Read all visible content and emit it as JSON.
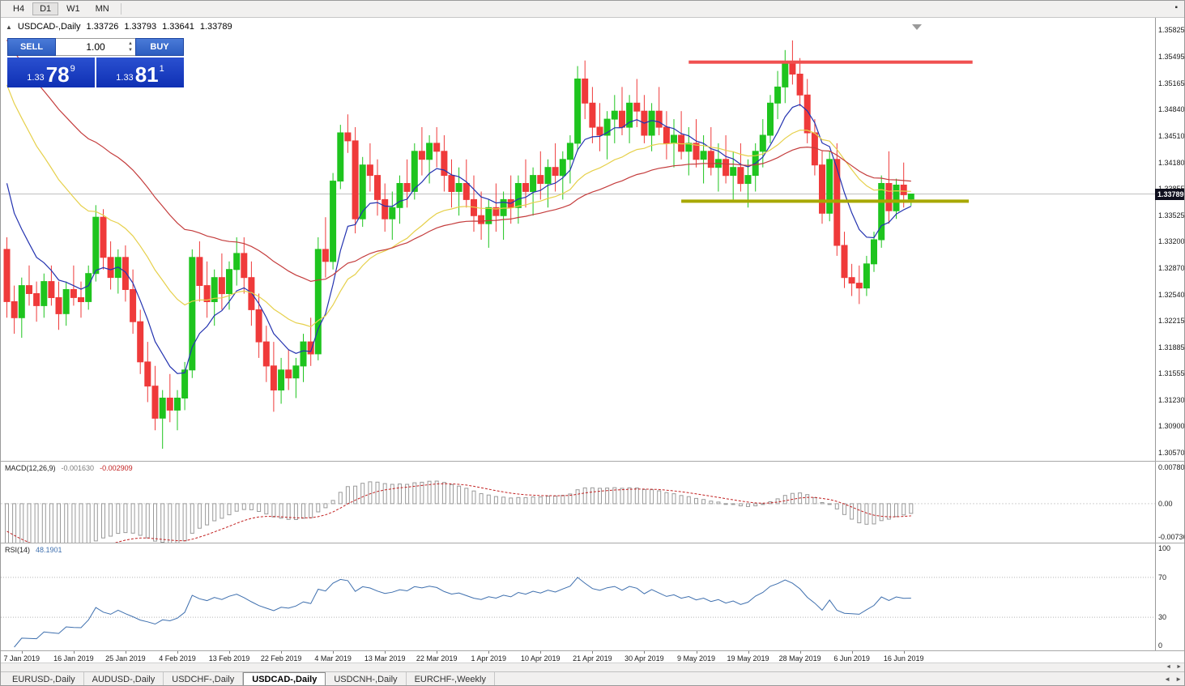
{
  "toolbar": {
    "timeframes": [
      "H4",
      "D1",
      "W1",
      "MN"
    ],
    "active": "D1",
    "corner_icon": "▪"
  },
  "chart": {
    "title_symbol": "USDCAD-,Daily",
    "ohlc": {
      "open": "1.33726",
      "high": "1.33793",
      "low": "1.33641",
      "close": "1.33789"
    },
    "current_price": "1.33789",
    "price_axis": [
      "1.35825",
      "1.35495",
      "1.35165",
      "1.34840",
      "1.34510",
      "1.34180",
      "1.33855",
      "1.33525",
      "1.33200",
      "1.32870",
      "1.32540",
      "1.32215",
      "1.31885",
      "1.31555",
      "1.31230",
      "1.30900",
      "1.30570"
    ]
  },
  "trade_panel": {
    "sell_label": "SELL",
    "buy_label": "BUY",
    "volume": "1.00",
    "bid_small": "1.33",
    "bid_big": "78",
    "bid_sup": "9",
    "ask_small": "1.33",
    "ask_big": "81",
    "ask_sup": "1"
  },
  "chart_data": {
    "type": "candlestick",
    "symbol": "USDCAD",
    "timeframe": "Daily",
    "x_axis_dates": {
      "labels": [
        "7 Jan 2019",
        "16 Jan 2019",
        "25 Jan 2019",
        "4 Feb 2019",
        "13 Feb 2019",
        "22 Feb 2019",
        "4 Mar 2019",
        "13 Mar 2019",
        "22 Mar 2019",
        "1 Apr 2019",
        "10 Apr 2019",
        "21 Apr 2019",
        "30 Apr 2019",
        "9 May 2019",
        "19 May 2019",
        "28 May 2019",
        "6 Jun 2019",
        "16 Jun 2019"
      ],
      "candle_indices": [
        2,
        9,
        16,
        23,
        30,
        37,
        44,
        51,
        58,
        65,
        72,
        79,
        86,
        93,
        100,
        107,
        114,
        121
      ]
    },
    "candles": [
      [
        1.331,
        1.3325,
        1.3225,
        1.3245
      ],
      [
        1.3245,
        1.3265,
        1.3205,
        1.3225
      ],
      [
        1.3225,
        1.3275,
        1.32,
        1.3265
      ],
      [
        1.3265,
        1.329,
        1.324,
        1.3255
      ],
      [
        1.3255,
        1.327,
        1.322,
        1.324
      ],
      [
        1.324,
        1.328,
        1.3225,
        1.327
      ],
      [
        1.327,
        1.329,
        1.324,
        1.325
      ],
      [
        1.325,
        1.327,
        1.321,
        1.323
      ],
      [
        1.323,
        1.327,
        1.3215,
        1.326
      ],
      [
        1.326,
        1.329,
        1.324,
        1.325
      ],
      [
        1.325,
        1.327,
        1.3225,
        1.3245
      ],
      [
        1.3245,
        1.329,
        1.3235,
        1.328
      ],
      [
        1.328,
        1.3365,
        1.327,
        1.335
      ],
      [
        1.335,
        1.336,
        1.3285,
        1.33
      ],
      [
        1.33,
        1.332,
        1.326,
        1.3275
      ],
      [
        1.3275,
        1.331,
        1.3255,
        1.33
      ],
      [
        1.33,
        1.3315,
        1.3245,
        1.326
      ],
      [
        1.326,
        1.3285,
        1.3205,
        1.322
      ],
      [
        1.322,
        1.3235,
        1.3155,
        1.317
      ],
      [
        1.317,
        1.3195,
        1.312,
        1.314
      ],
      [
        1.314,
        1.3165,
        1.3085,
        1.31
      ],
      [
        1.31,
        1.3135,
        1.3062,
        1.3125
      ],
      [
        1.3125,
        1.3155,
        1.3095,
        1.311
      ],
      [
        1.311,
        1.3135,
        1.3085,
        1.3125
      ],
      [
        1.3125,
        1.317,
        1.311,
        1.316
      ],
      [
        1.316,
        1.331,
        1.315,
        1.33
      ],
      [
        1.33,
        1.332,
        1.3245,
        1.3265
      ],
      [
        1.3265,
        1.3295,
        1.3225,
        1.3245
      ],
      [
        1.3245,
        1.3285,
        1.3215,
        1.3275
      ],
      [
        1.3275,
        1.3305,
        1.3235,
        1.3255
      ],
      [
        1.3255,
        1.3295,
        1.3235,
        1.3285
      ],
      [
        1.3285,
        1.3325,
        1.3265,
        1.3305
      ],
      [
        1.3305,
        1.3325,
        1.3255,
        1.3275
      ],
      [
        1.3275,
        1.3295,
        1.3215,
        1.3235
      ],
      [
        1.3235,
        1.3255,
        1.3175,
        1.3195
      ],
      [
        1.3195,
        1.3215,
        1.3145,
        1.3165
      ],
      [
        1.3165,
        1.3195,
        1.3108,
        1.3135
      ],
      [
        1.3135,
        1.3175,
        1.3118,
        1.316
      ],
      [
        1.316,
        1.3185,
        1.3135,
        1.315
      ],
      [
        1.315,
        1.3175,
        1.3125,
        1.3165
      ],
      [
        1.3165,
        1.3205,
        1.3145,
        1.3195
      ],
      [
        1.3195,
        1.3225,
        1.3165,
        1.318
      ],
      [
        1.318,
        1.3325,
        1.3172,
        1.331
      ],
      [
        1.331,
        1.335,
        1.3275,
        1.3295
      ],
      [
        1.3295,
        1.3405,
        1.3285,
        1.3395
      ],
      [
        1.3395,
        1.3465,
        1.3385,
        1.3455
      ],
      [
        1.3455,
        1.3478,
        1.343,
        1.3445
      ],
      [
        1.3445,
        1.3462,
        1.333,
        1.3348
      ],
      [
        1.3348,
        1.3425,
        1.3338,
        1.3415
      ],
      [
        1.3415,
        1.3442,
        1.3382,
        1.3402
      ],
      [
        1.3402,
        1.3422,
        1.3352,
        1.3372
      ],
      [
        1.3372,
        1.3392,
        1.3332,
        1.3348
      ],
      [
        1.3348,
        1.3382,
        1.3322,
        1.3362
      ],
      [
        1.3362,
        1.3402,
        1.3342,
        1.3392
      ],
      [
        1.3392,
        1.3422,
        1.3362,
        1.3382
      ],
      [
        1.3382,
        1.3442,
        1.3372,
        1.3432
      ],
      [
        1.3432,
        1.3462,
        1.3402,
        1.3422
      ],
      [
        1.3422,
        1.3452,
        1.3392,
        1.3442
      ],
      [
        1.3442,
        1.3462,
        1.3412,
        1.3432
      ],
      [
        1.3432,
        1.3452,
        1.3382,
        1.3402
      ],
      [
        1.3402,
        1.3422,
        1.3362,
        1.3382
      ],
      [
        1.3382,
        1.3412,
        1.3352,
        1.3392
      ],
      [
        1.3392,
        1.3422,
        1.3362,
        1.3372
      ],
      [
        1.3372,
        1.3402,
        1.3332,
        1.3352
      ],
      [
        1.3352,
        1.3382,
        1.3322,
        1.3342
      ],
      [
        1.3342,
        1.3372,
        1.3312,
        1.3362
      ],
      [
        1.3362,
        1.3392,
        1.3332,
        1.3352
      ],
      [
        1.3352,
        1.3382,
        1.3322,
        1.3372
      ],
      [
        1.3372,
        1.3402,
        1.3342,
        1.3362
      ],
      [
        1.3362,
        1.3402,
        1.3342,
        1.3392
      ],
      [
        1.3392,
        1.3422,
        1.3362,
        1.3382
      ],
      [
        1.3382,
        1.3412,
        1.3352,
        1.3402
      ],
      [
        1.3402,
        1.3432,
        1.3372,
        1.3392
      ],
      [
        1.3392,
        1.3422,
        1.3362,
        1.3412
      ],
      [
        1.3412,
        1.3442,
        1.3382,
        1.3402
      ],
      [
        1.3402,
        1.3432,
        1.3372,
        1.3422
      ],
      [
        1.3422,
        1.3452,
        1.3392,
        1.3442
      ],
      [
        1.3442,
        1.3538,
        1.3432,
        1.3522
      ],
      [
        1.3522,
        1.3545,
        1.3472,
        1.3492
      ],
      [
        1.3492,
        1.3512,
        1.3442,
        1.3462
      ],
      [
        1.3462,
        1.3492,
        1.3432,
        1.3452
      ],
      [
        1.3452,
        1.3482,
        1.3422,
        1.3472
      ],
      [
        1.3472,
        1.3502,
        1.3442,
        1.3482
      ],
      [
        1.3482,
        1.3512,
        1.3452,
        1.3462
      ],
      [
        1.3462,
        1.3502,
        1.3442,
        1.3492
      ],
      [
        1.3492,
        1.3522,
        1.3462,
        1.3482
      ],
      [
        1.3482,
        1.3502,
        1.3442,
        1.3452
      ],
      [
        1.3452,
        1.3492,
        1.3432,
        1.3482
      ],
      [
        1.3482,
        1.3512,
        1.3452,
        1.3462
      ],
      [
        1.3462,
        1.3482,
        1.3422,
        1.3442
      ],
      [
        1.3442,
        1.3472,
        1.3412,
        1.3452
      ],
      [
        1.3452,
        1.3482,
        1.3422,
        1.3432
      ],
      [
        1.3432,
        1.3462,
        1.3402,
        1.3442
      ],
      [
        1.3442,
        1.3472,
        1.3412,
        1.3422
      ],
      [
        1.3422,
        1.3452,
        1.3392,
        1.3432
      ],
      [
        1.3432,
        1.3462,
        1.3402,
        1.3412
      ],
      [
        1.3412,
        1.3442,
        1.3382,
        1.3422
      ],
      [
        1.3422,
        1.3452,
        1.3392,
        1.3402
      ],
      [
        1.3402,
        1.3432,
        1.3372,
        1.3412
      ],
      [
        1.3412,
        1.3442,
        1.3382,
        1.3392
      ],
      [
        1.3392,
        1.3422,
        1.3362,
        1.3402
      ],
      [
        1.3402,
        1.3442,
        1.3382,
        1.3432
      ],
      [
        1.3432,
        1.3472,
        1.3412,
        1.3452
      ],
      [
        1.3452,
        1.3502,
        1.3442,
        1.3492
      ],
      [
        1.3492,
        1.3532,
        1.3472,
        1.3512
      ],
      [
        1.3512,
        1.3558,
        1.3492,
        1.3542
      ],
      [
        1.3542,
        1.357,
        1.3515,
        1.3528
      ],
      [
        1.3528,
        1.3548,
        1.3488,
        1.3502
      ],
      [
        1.3502,
        1.3522,
        1.3442,
        1.3455
      ],
      [
        1.3455,
        1.3472,
        1.3402,
        1.3415
      ],
      [
        1.3415,
        1.3432,
        1.3342,
        1.3355
      ],
      [
        1.3355,
        1.3432,
        1.3345,
        1.3422
      ],
      [
        1.3422,
        1.3442,
        1.3302,
        1.3315
      ],
      [
        1.3315,
        1.3332,
        1.3262,
        1.3275
      ],
      [
        1.3275,
        1.3292,
        1.3252,
        1.3268
      ],
      [
        1.3268,
        1.329,
        1.3242,
        1.3262
      ],
      [
        1.3262,
        1.3302,
        1.3252,
        1.3292
      ],
      [
        1.3292,
        1.3332,
        1.3282,
        1.3322
      ],
      [
        1.3322,
        1.3402,
        1.3312,
        1.3392
      ],
      [
        1.3392,
        1.3432,
        1.3342,
        1.3358
      ],
      [
        1.3358,
        1.3398,
        1.3348,
        1.339
      ],
      [
        1.339,
        1.3418,
        1.3362,
        1.3378
      ],
      [
        1.33726,
        1.33793,
        1.33641,
        1.33789
      ]
    ],
    "ma_seed_closes": [
      1.366,
      1.3635,
      1.361,
      1.3585,
      1.356,
      1.3535,
      1.351,
      1.3485,
      1.346,
      1.343,
      1.34,
      1.337,
      1.334
    ],
    "moving_averages": [
      {
        "name": "ema-fast",
        "period": 8,
        "color": "#2433b0"
      },
      {
        "name": "ema-mid",
        "period": 24,
        "color": "#e6d04a"
      },
      {
        "name": "ema-slow",
        "period": 45,
        "color": "#c43c3c"
      }
    ],
    "hlines": [
      {
        "name": "resistance-line",
        "price": 1.3543,
        "start_index": 92,
        "end_index": 130.3,
        "color": "#f05050"
      },
      {
        "name": "support-line",
        "price": 1.337,
        "start_index": 91,
        "end_index": 129.8,
        "color": "#a8a800"
      }
    ],
    "macd": {
      "label": "MACD(12,26,9)",
      "value_main": "-0.001630",
      "value_signal": "-0.002909",
      "fast": 12,
      "slow": 26,
      "signal_period": 9,
      "axis_max": "0.007807",
      "axis_zero": "0.00",
      "axis_min": "-0.007362",
      "scale_max": 0.007807,
      "scale_min": -0.007362
    },
    "rsi": {
      "label": "RSI(14)",
      "value": "48.1901",
      "period": 14,
      "levels": [
        "100",
        "70",
        "30",
        "0"
      ],
      "dotted_levels": [
        70,
        30
      ]
    },
    "colors": {
      "candle_up": "#1ec41e",
      "candle_down": "#ef3a3a",
      "price_line": "#c0c0c0",
      "macd_hist": "#9a9a9a",
      "macd_signal": "#c22222",
      "rsi_line": "#3e6fae",
      "badge_bg": "#10101e"
    }
  },
  "tabs": {
    "items": [
      "EURUSD-,Daily",
      "AUDUSD-,Daily",
      "USDCHF-,Daily",
      "USDCAD-,Daily",
      "USDCNH-,Daily",
      "EURCHF-,Weekly"
    ],
    "active_index": 3,
    "scroll_left": "◄",
    "scroll_right": "►"
  },
  "scrollbar": {
    "left_arrow": "◄",
    "right_arrow": "►"
  }
}
